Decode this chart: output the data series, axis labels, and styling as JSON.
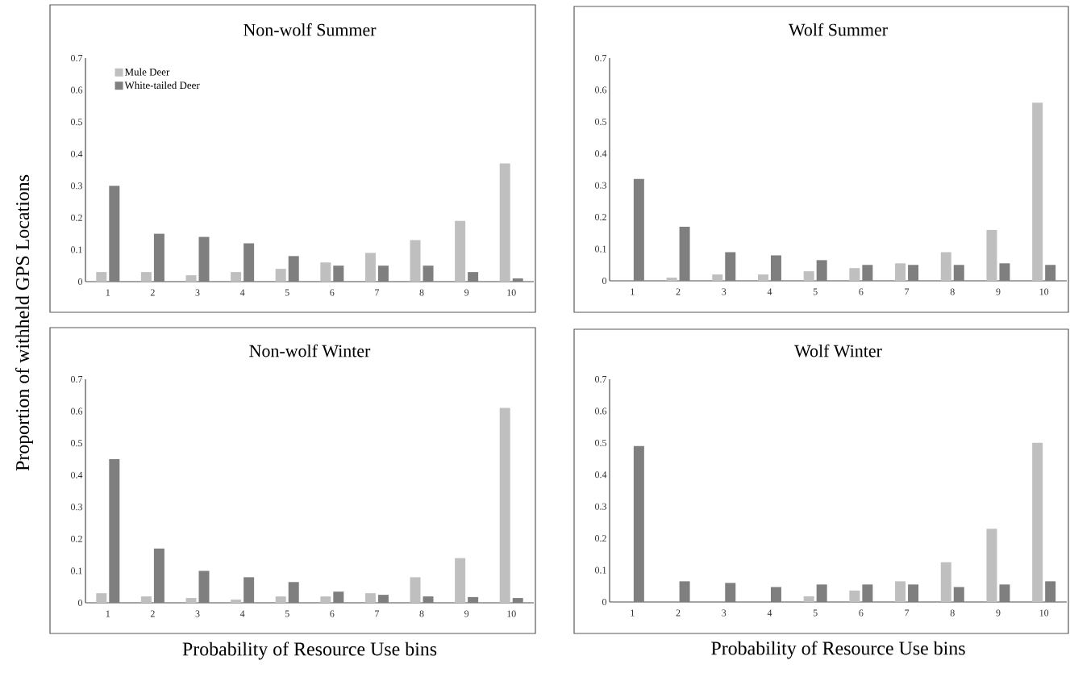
{
  "chart_data": [
    {
      "type": "bar",
      "title": "Non-wolf Summer",
      "ylabel": "Proportion of withheld GPS Locations",
      "categories": [
        "1",
        "2",
        "3",
        "4",
        "5",
        "6",
        "7",
        "8",
        "9",
        "10"
      ],
      "ylim": [
        0,
        0.7
      ],
      "yticks": [
        0,
        0.1,
        0.2,
        0.3,
        0.4,
        0.5,
        0.6,
        0.7
      ],
      "legend": "top left",
      "series": [
        {
          "name": "Mule Deer",
          "color": "#bfbfbf",
          "values": [
            0.03,
            0.03,
            0.02,
            0.03,
            0.04,
            0.06,
            0.09,
            0.13,
            0.19,
            0.37
          ]
        },
        {
          "name": "White-tailed Deer",
          "color": "#7f7f7f",
          "values": [
            0.3,
            0.15,
            0.14,
            0.12,
            0.08,
            0.05,
            0.05,
            0.05,
            0.03,
            0.01
          ]
        }
      ]
    },
    {
      "type": "bar",
      "title": "Wolf Summer",
      "categories": [
        "1",
        "2",
        "3",
        "4",
        "5",
        "6",
        "7",
        "8",
        "9",
        "10"
      ],
      "ylim": [
        0,
        0.7
      ],
      "yticks": [
        0,
        0.1,
        0.2,
        0.3,
        0.4,
        0.5,
        0.6,
        0.7
      ],
      "series": [
        {
          "color": "#bfbfbf",
          "values": [
            0,
            0.01,
            0.02,
            0.02,
            0.03,
            0.04,
            0.055,
            0.09,
            0.16,
            0.56
          ]
        },
        {
          "color": "#7f7f7f",
          "values": [
            0.32,
            0.17,
            0.09,
            0.08,
            0.065,
            0.05,
            0.05,
            0.05,
            0.055,
            0.05
          ]
        }
      ]
    },
    {
      "type": "bar",
      "title": "Non-wolf Winter",
      "xlabel": "Probability of Resource Use bins",
      "categories": [
        "1",
        "2",
        "3",
        "4",
        "5",
        "6",
        "7",
        "8",
        "9",
        "10"
      ],
      "ylim": [
        0,
        0.7
      ],
      "yticks": [
        0,
        0.1,
        0.2,
        0.3,
        0.4,
        0.5,
        0.6,
        0.7
      ],
      "series": [
        {
          "color": "#bfbfbf",
          "values": [
            0.03,
            0.02,
            0.015,
            0.01,
            0.02,
            0.02,
            0.03,
            0.08,
            0.14,
            0.61
          ]
        },
        {
          "color": "#7f7f7f",
          "values": [
            0.45,
            0.17,
            0.1,
            0.08,
            0.065,
            0.035,
            0.025,
            0.02,
            0.018,
            0.015
          ]
        }
      ]
    },
    {
      "type": "bar",
      "title": "Wolf Winter",
      "xlabel": "Probability of Resource Use bins",
      "categories": [
        "1",
        "2",
        "3",
        "4",
        "5",
        "6",
        "7",
        "8",
        "9",
        "10"
      ],
      "ylim": [
        0,
        0.7
      ],
      "yticks": [
        0,
        0.1,
        0.2,
        0.3,
        0.4,
        0.5,
        0.6,
        0.7
      ],
      "series": [
        {
          "color": "#bfbfbf",
          "values": [
            0,
            0,
            0,
            0,
            0.018,
            0.036,
            0.065,
            0.125,
            0.23,
            0.5
          ]
        },
        {
          "color": "#7f7f7f",
          "values": [
            0.49,
            0.065,
            0.06,
            0.047,
            0.055,
            0.055,
            0.055,
            0.047,
            0.055,
            0.065
          ]
        }
      ]
    }
  ]
}
